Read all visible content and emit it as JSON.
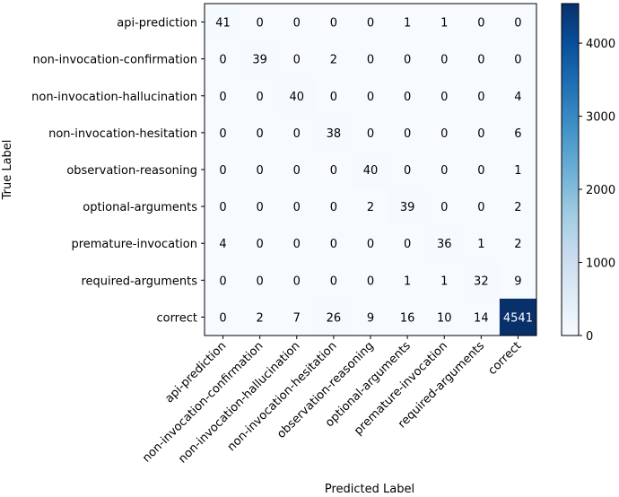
{
  "chart_data": {
    "type": "heatmap",
    "title": "",
    "xlabel": "Predicted Label",
    "ylabel": "True Label",
    "x_categories": [
      "api-prediction",
      "non-invocation-confirmation",
      "non-invocation-hallucination",
      "non-invocation-hesitation",
      "observation-reasoning",
      "optional-arguments",
      "premature-invocation",
      "required-arguments",
      "correct"
    ],
    "y_categories": [
      "api-prediction",
      "non-invocation-confirmation",
      "non-invocation-hallucination",
      "non-invocation-hesitation",
      "observation-reasoning",
      "optional-arguments",
      "premature-invocation",
      "required-arguments",
      "correct"
    ],
    "matrix": [
      [
        41,
        0,
        0,
        0,
        0,
        1,
        1,
        0,
        0
      ],
      [
        0,
        39,
        0,
        2,
        0,
        0,
        0,
        0,
        0
      ],
      [
        0,
        0,
        40,
        0,
        0,
        0,
        0,
        0,
        4
      ],
      [
        0,
        0,
        0,
        38,
        0,
        0,
        0,
        0,
        6
      ],
      [
        0,
        0,
        0,
        0,
        40,
        0,
        0,
        0,
        1
      ],
      [
        0,
        0,
        0,
        0,
        2,
        39,
        0,
        0,
        2
      ],
      [
        4,
        0,
        0,
        0,
        0,
        0,
        36,
        1,
        2
      ],
      [
        0,
        0,
        0,
        0,
        0,
        1,
        1,
        32,
        9
      ],
      [
        0,
        2,
        7,
        26,
        9,
        16,
        10,
        14,
        4541
      ]
    ],
    "colormap": "Blues",
    "color_low": "#f7fbff",
    "color_high": "#08306b",
    "vmin": 0,
    "vmax": 4541,
    "colorbar_ticks": [
      0,
      1000,
      2000,
      3000,
      4000
    ],
    "colorbar_tick_labels": [
      "0",
      "1000",
      "2000",
      "3000",
      "4000"
    ],
    "grid": false,
    "legend": "colorbar-right"
  }
}
